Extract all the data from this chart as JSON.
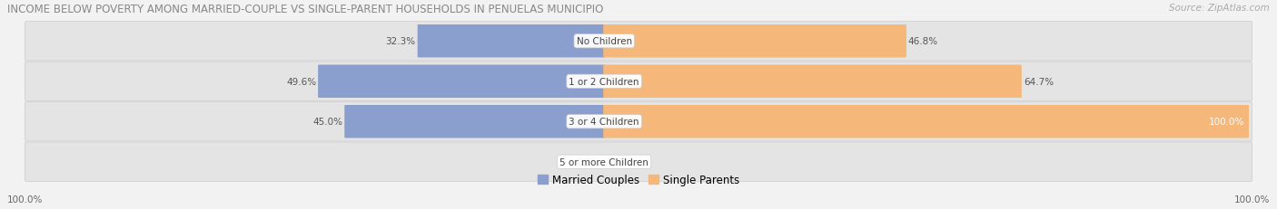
{
  "title": "INCOME BELOW POVERTY AMONG MARRIED-COUPLE VS SINGLE-PARENT HOUSEHOLDS IN PENUELAS MUNICIPIO",
  "source": "Source: ZipAtlas.com",
  "categories": [
    "No Children",
    "1 or 2 Children",
    "3 or 4 Children",
    "5 or more Children"
  ],
  "married_values": [
    32.3,
    49.6,
    45.0,
    0.0
  ],
  "single_values": [
    46.8,
    64.7,
    100.0,
    0.0
  ],
  "married_color": "#8b9fce",
  "single_color": "#f5b87a",
  "married_label": "Married Couples",
  "single_label": "Single Parents",
  "max_val": 100.0,
  "bg_color": "#f2f2f2",
  "row_bg_color": "#e4e4e4",
  "title_fontsize": 8.5,
  "source_fontsize": 7.5,
  "value_fontsize": 7.5,
  "category_fontsize": 7.5,
  "legend_fontsize": 8.5,
  "left_axis_label": "100.0%",
  "right_axis_label": "100.0%"
}
